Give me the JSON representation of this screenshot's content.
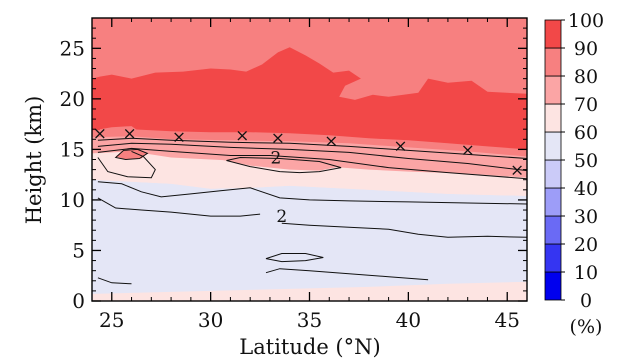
{
  "chart_data": {
    "type": "heatmap",
    "title": "",
    "xlabel": "Latitude (°N)",
    "ylabel": "Height (km)",
    "xlim": [
      24,
      46
    ],
    "ylim": [
      0,
      28
    ],
    "xticks": [
      25,
      30,
      35,
      40,
      45
    ],
    "xtick_labels": [
      "25",
      "30",
      "35",
      "40",
      "45"
    ],
    "yticks": [
      0,
      5,
      10,
      15,
      20,
      25
    ],
    "ytick_labels": [
      "0",
      "5",
      "10",
      "15",
      "20",
      "25"
    ],
    "colorbar": {
      "unit_label": "(%)",
      "levels": [
        0,
        10,
        20,
        30,
        40,
        50,
        60,
        70,
        80,
        90,
        100
      ],
      "level_labels": [
        "0",
        "10",
        "20",
        "30",
        "40",
        "50",
        "60",
        "70",
        "80",
        "90",
        "100"
      ],
      "colors": [
        "#0000ee",
        "#3535f2",
        "#6a6af5",
        "#9d9df8",
        "#cbcbf8",
        "#e4e6f6",
        "#fde4e2",
        "#fba5a5",
        "#f78080",
        "#f24848",
        "#e60000"
      ]
    },
    "fill_colors": {
      "band_0_10": "#fde4e2",
      "band_10_20": "#e4e6f6",
      "band_20_30": "#fde4e2",
      "band_30_40": "#fba5a5",
      "band_40_50": "#f78080",
      "band_50_60": "#f24848"
    },
    "contour_label": "2",
    "contour_label_positions": [
      [
        33.3,
        14.2
      ],
      [
        33.6,
        8.4
      ]
    ],
    "tropopause_markers": {
      "marker": "×",
      "points": [
        [
          24.4,
          16.6
        ],
        [
          25.9,
          16.6
        ],
        [
          28.4,
          16.3
        ],
        [
          31.6,
          16.4
        ],
        [
          33.4,
          16.2
        ],
        [
          36.1,
          15.9
        ],
        [
          39.6,
          15.4
        ],
        [
          43.0,
          15.0
        ],
        [
          45.5,
          13.0
        ]
      ]
    }
  }
}
